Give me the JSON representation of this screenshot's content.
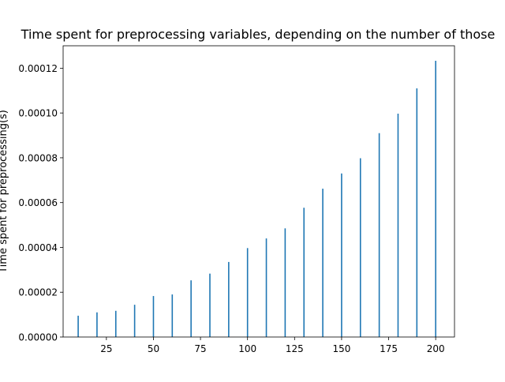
{
  "chart_data": {
    "type": "bar",
    "title": "Time spent for preprocessing variables, depending on the number of those",
    "xlabel": "",
    "ylabel": "Time spent for preprocessing(s)",
    "x": [
      10,
      20,
      30,
      40,
      50,
      60,
      70,
      80,
      90,
      100,
      110,
      120,
      130,
      140,
      150,
      160,
      170,
      180,
      190,
      200
    ],
    "values": [
      9.5e-06,
      1.1e-05,
      1.17e-05,
      1.44e-05,
      1.83e-05,
      1.9e-05,
      2.53e-05,
      2.83e-05,
      3.35e-05,
      3.97e-05,
      4.4e-05,
      4.85e-05,
      5.77e-05,
      6.62e-05,
      7.3e-05,
      7.98e-05,
      9.1e-05,
      9.97e-05,
      0.000111,
      0.0001233
    ],
    "xlim": [
      2,
      210
    ],
    "ylim": [
      0,
      0.00013
    ],
    "xticks": [
      25,
      50,
      75,
      100,
      125,
      150,
      175,
      200
    ],
    "yticks": [
      0,
      2e-05,
      4e-05,
      6e-05,
      8e-05,
      0.0001,
      0.00012
    ],
    "ytick_labels": [
      "0.00000",
      "0.00002",
      "0.00004",
      "0.00006",
      "0.00008",
      "0.00010",
      "0.00012"
    ],
    "bar_color": "#1f77b4",
    "grid": false,
    "legend": "none"
  }
}
